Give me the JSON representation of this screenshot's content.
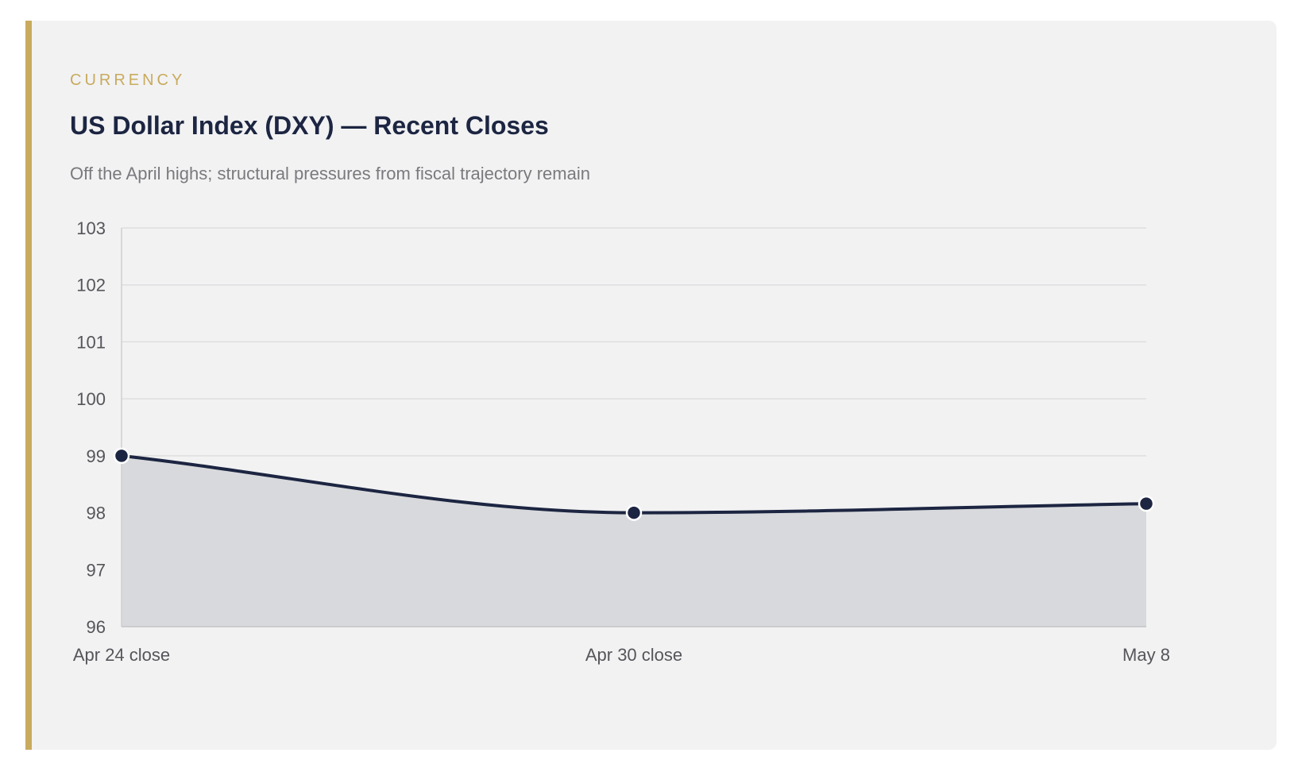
{
  "card": {
    "eyebrow": "CURRENCY",
    "title": "US Dollar Index (DXY) — Recent Closes",
    "subtitle": "Off the April highs; structural pressures from fiscal trajectory remain"
  },
  "colors": {
    "accent": "#c8ab5d",
    "line": "#1c2541",
    "area": "#d8d9dc",
    "grid": "#dedee0",
    "card_bg": "#f2f2f3"
  },
  "chart_data": {
    "type": "area",
    "categories": [
      "Apr 24 close",
      "Apr 30 close",
      "May 8"
    ],
    "values": [
      99.0,
      98.0,
      98.16
    ],
    "ylim": [
      96,
      103
    ],
    "yticks": [
      96,
      97,
      98,
      99,
      100,
      101,
      102,
      103
    ],
    "grid": true,
    "legend": "none",
    "smooth": true
  }
}
